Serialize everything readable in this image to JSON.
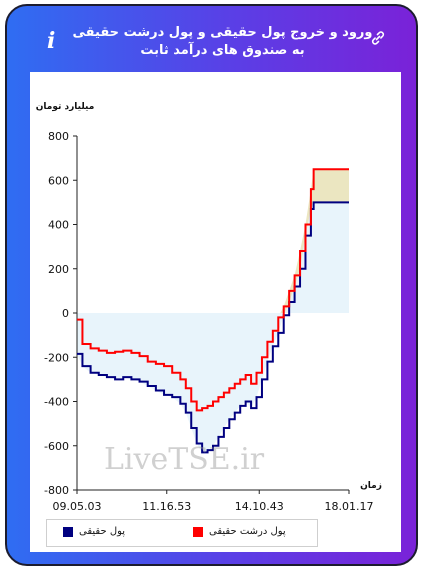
{
  "header": {
    "title": "ورود و خروج پول حقیقی و پول درشت حقیقی به صندوق های درآمد ثابت",
    "info_symbol": "i",
    "link_icon": "link-icon"
  },
  "watermark": "LiveTSE.ir",
  "chart_data": {
    "type": "line",
    "title": "",
    "ylabel": "میلیارد تومان",
    "xlabel": "زمان",
    "ylim": [
      -800,
      800
    ],
    "yticks": [
      800,
      600,
      400,
      200,
      0,
      -200,
      -400,
      -600,
      -800
    ],
    "x_tick_labels": [
      "09.05.03",
      "11.16.53",
      "14.10.43",
      "18.01.17"
    ],
    "x_tick_positions": [
      0,
      0.33,
      0.67,
      1.0
    ],
    "series": [
      {
        "name": "پول حقیقی",
        "color": "#000080",
        "fill": "#e8f4fb",
        "values": [
          [
            0,
            -185
          ],
          [
            0.02,
            -240
          ],
          [
            0.05,
            -270
          ],
          [
            0.08,
            -280
          ],
          [
            0.11,
            -290
          ],
          [
            0.14,
            -300
          ],
          [
            0.17,
            -290
          ],
          [
            0.2,
            -300
          ],
          [
            0.23,
            -310
          ],
          [
            0.26,
            -330
          ],
          [
            0.29,
            -350
          ],
          [
            0.32,
            -370
          ],
          [
            0.35,
            -380
          ],
          [
            0.38,
            -410
          ],
          [
            0.4,
            -450
          ],
          [
            0.42,
            -520
          ],
          [
            0.44,
            -590
          ],
          [
            0.46,
            -630
          ],
          [
            0.48,
            -620
          ],
          [
            0.5,
            -600
          ],
          [
            0.52,
            -560
          ],
          [
            0.54,
            -520
          ],
          [
            0.56,
            -480
          ],
          [
            0.58,
            -450
          ],
          [
            0.6,
            -420
          ],
          [
            0.62,
            -400
          ],
          [
            0.64,
            -430
          ],
          [
            0.66,
            -380
          ],
          [
            0.68,
            -300
          ],
          [
            0.7,
            -220
          ],
          [
            0.72,
            -150
          ],
          [
            0.74,
            -90
          ],
          [
            0.76,
            -10
          ],
          [
            0.78,
            50
          ],
          [
            0.8,
            120
          ],
          [
            0.82,
            200
          ],
          [
            0.84,
            350
          ],
          [
            0.86,
            470
          ],
          [
            0.87,
            500
          ],
          [
            0.9,
            500
          ],
          [
            1.0,
            500
          ]
        ]
      },
      {
        "name": "پول درشت حقیقی",
        "color": "#ff0000",
        "fill": "#ebe6c1",
        "values": [
          [
            0,
            -30
          ],
          [
            0.02,
            -140
          ],
          [
            0.05,
            -160
          ],
          [
            0.08,
            -170
          ],
          [
            0.11,
            -180
          ],
          [
            0.14,
            -175
          ],
          [
            0.17,
            -170
          ],
          [
            0.2,
            -180
          ],
          [
            0.23,
            -195
          ],
          [
            0.26,
            -220
          ],
          [
            0.29,
            -230
          ],
          [
            0.32,
            -240
          ],
          [
            0.35,
            -270
          ],
          [
            0.38,
            -300
          ],
          [
            0.4,
            -340
          ],
          [
            0.42,
            -400
          ],
          [
            0.44,
            -440
          ],
          [
            0.46,
            -430
          ],
          [
            0.48,
            -420
          ],
          [
            0.5,
            -400
          ],
          [
            0.52,
            -380
          ],
          [
            0.54,
            -360
          ],
          [
            0.56,
            -340
          ],
          [
            0.58,
            -320
          ],
          [
            0.6,
            -300
          ],
          [
            0.62,
            -280
          ],
          [
            0.64,
            -320
          ],
          [
            0.66,
            -270
          ],
          [
            0.68,
            -200
          ],
          [
            0.7,
            -130
          ],
          [
            0.72,
            -80
          ],
          [
            0.74,
            -20
          ],
          [
            0.76,
            30
          ],
          [
            0.78,
            100
          ],
          [
            0.8,
            170
          ],
          [
            0.82,
            280
          ],
          [
            0.84,
            400
          ],
          [
            0.86,
            560
          ],
          [
            0.87,
            650
          ],
          [
            0.9,
            650
          ],
          [
            1.0,
            650
          ]
        ]
      }
    ],
    "legend": [
      {
        "label": "پول حقیقی",
        "color": "#000080"
      },
      {
        "label": "پول درشت حقیقی",
        "color": "#ff0000"
      }
    ]
  }
}
